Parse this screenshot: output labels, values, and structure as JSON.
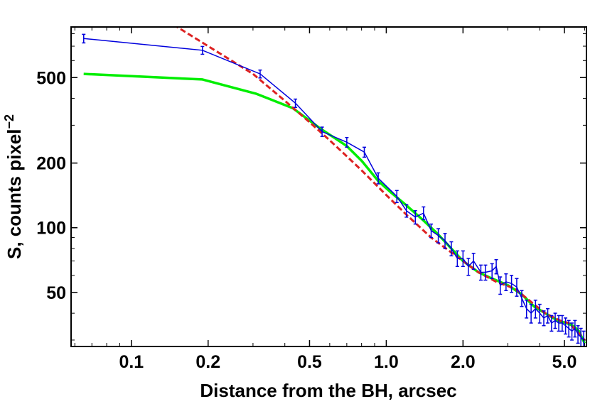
{
  "chart_data": {
    "type": "line",
    "xlabel": "Distance from the BH, arcsec",
    "ylabel": "S, counts pixel",
    "ylabel_sup": "−2",
    "x_scale": "log",
    "y_scale": "log",
    "xlim": [
      0.058,
      6.1
    ],
    "ylim": [
      28,
      860
    ],
    "x_ticks": [
      {
        "value": 0.1,
        "label": "0.1"
      },
      {
        "value": 0.2,
        "label": "0.2"
      },
      {
        "value": 0.5,
        "label": "0.5"
      },
      {
        "value": 1.0,
        "label": "1.0"
      },
      {
        "value": 2.0,
        "label": "2.0"
      },
      {
        "value": 5.0,
        "label": "5.0"
      }
    ],
    "x_minor_ticks": [
      0.06,
      0.07,
      0.08,
      0.09,
      0.3,
      0.4,
      0.6,
      0.7,
      0.8,
      0.9,
      3,
      4,
      6
    ],
    "y_ticks": [
      {
        "value": 50,
        "label": "50"
      },
      {
        "value": 100,
        "label": "100"
      },
      {
        "value": 200,
        "label": "200"
      },
      {
        "value": 500,
        "label": "500"
      }
    ],
    "y_minor_ticks": [
      30,
      40,
      60,
      70,
      80,
      90,
      300,
      400,
      600,
      700,
      800
    ],
    "grid": false,
    "series": [
      {
        "style": "data-with-error-bars",
        "color": "#0000dd",
        "x": [
          0.065,
          0.19,
          0.32,
          0.44,
          0.56,
          0.7,
          0.82,
          0.93,
          1.1,
          1.2,
          1.3,
          1.4,
          1.5,
          1.6,
          1.7,
          1.8,
          1.9,
          2.0,
          2.1,
          2.2,
          2.35,
          2.45,
          2.6,
          2.7,
          2.8,
          2.95,
          3.1,
          3.25,
          3.4,
          3.55,
          3.7,
          3.85,
          4.0,
          4.15,
          4.3,
          4.45,
          4.6,
          4.75,
          4.9,
          5.05,
          5.2,
          5.35,
          5.5,
          5.65,
          5.8,
          5.95
        ],
        "y": [
          760,
          670,
          520,
          380,
          280,
          250,
          225,
          170,
          140,
          120,
          112,
          117,
          97,
          92,
          87,
          80,
          72,
          72,
          66,
          70,
          62,
          62,
          63,
          66,
          54,
          56,
          55,
          53,
          47,
          42,
          40,
          42,
          40,
          38,
          39,
          36,
          37,
          36,
          36,
          35,
          34,
          33,
          34,
          32,
          31,
          30
        ],
        "err": [
          35,
          28,
          22,
          17,
          14,
          13,
          12,
          10,
          9,
          8,
          8,
          8,
          7,
          7,
          7,
          6,
          6,
          6,
          6,
          6,
          5,
          5,
          5,
          5,
          5,
          5,
          5,
          5,
          4,
          4,
          4,
          4,
          4,
          3,
          3,
          3,
          3,
          3,
          3,
          3,
          3,
          3,
          3,
          3,
          3,
          3
        ]
      },
      {
        "style": "dashed-line",
        "color": "#dd2222",
        "x": [
          0.12,
          0.2,
          0.3,
          0.4,
          0.5,
          0.6,
          0.7,
          0.8,
          1.0,
          1.2,
          1.5,
          2.0,
          2.3,
          2.7,
          3.2,
          3.8,
          4.2,
          4.8,
          5.2,
          5.6,
          6.0
        ],
        "y": [
          1020,
          700,
          520,
          390,
          310,
          255,
          215,
          185,
          142,
          115,
          90,
          70,
          62,
          56,
          52,
          44,
          40,
          37,
          36,
          33,
          30
        ]
      },
      {
        "style": "solid-line",
        "color": "#00ee00",
        "x": [
          0.065,
          0.19,
          0.31,
          0.43,
          0.55,
          0.7,
          0.8,
          0.93,
          1.05,
          1.2,
          1.4,
          1.6,
          1.8,
          2.0,
          2.3,
          2.6,
          3.0,
          3.4,
          3.8,
          4.2,
          4.7,
          5.1,
          5.4,
          5.7,
          6.0
        ],
        "y": [
          520,
          490,
          420,
          360,
          290,
          240,
          205,
          165,
          145,
          127,
          108,
          93,
          80,
          70,
          62,
          58,
          54,
          49,
          43,
          40,
          37,
          36,
          35,
          33,
          29
        ]
      }
    ]
  }
}
